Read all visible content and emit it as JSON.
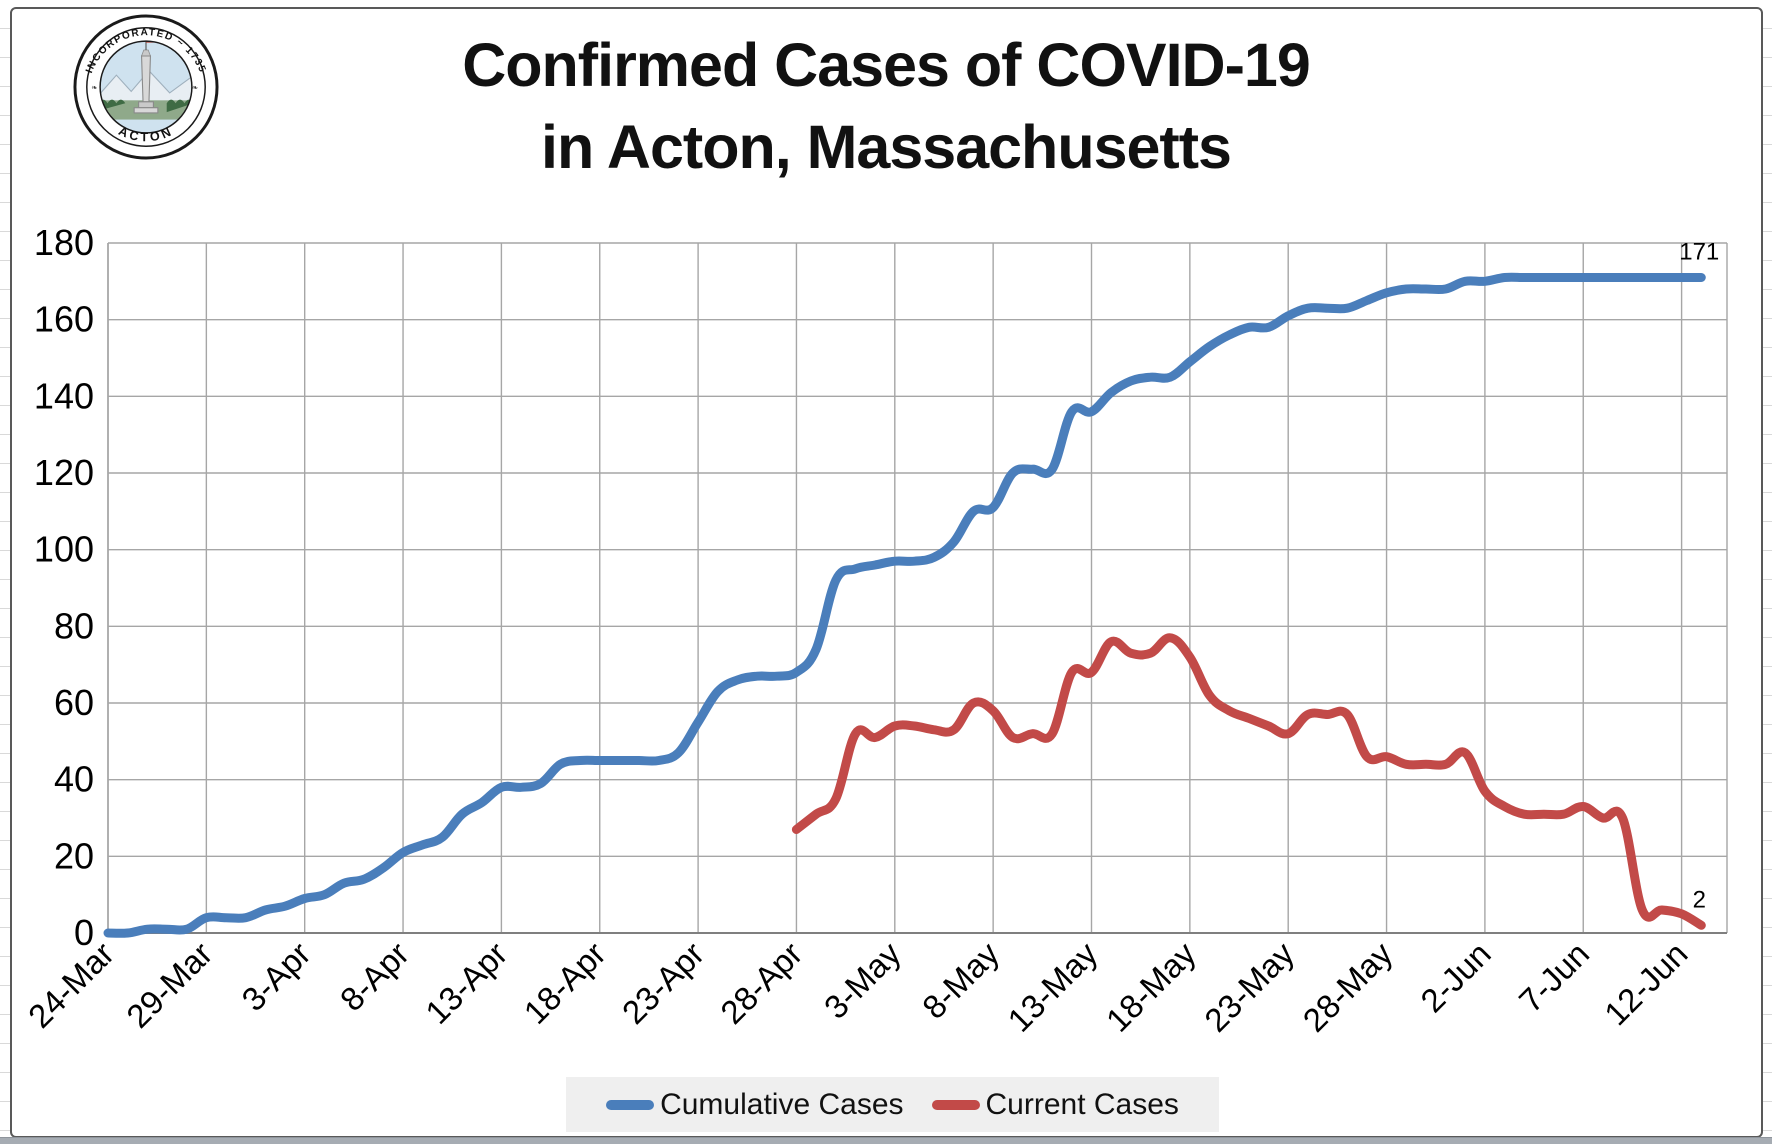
{
  "title": {
    "line1": "Confirmed Cases of COVID-19",
    "line2": "in Acton, Massachusetts"
  },
  "logo": {
    "top_text": "INCORPORATED ~ 1735",
    "bottom_text": "ACTON"
  },
  "colors": {
    "cumulative": "#4a7ebb",
    "current": "#c24a48",
    "gridline": "#a6a6a6",
    "axis": "#7f7f7f",
    "text": "#000000",
    "legend_bg": "#efefef"
  },
  "legend": {
    "items": [
      {
        "label": "Cumulative Cases",
        "color": "#4a7ebb"
      },
      {
        "label": "Current Cases",
        "color": "#c24a48"
      }
    ]
  },
  "chart_data": {
    "type": "line",
    "title": "Confirmed Cases of COVID-19 in Acton, Massachusetts",
    "grid": true,
    "legend_position": "bottom",
    "ylim": [
      0,
      180
    ],
    "y_ticks": [
      0,
      20,
      40,
      60,
      80,
      100,
      120,
      140,
      160,
      180
    ],
    "x_tick_labels": [
      "24-Mar",
      "29-Mar",
      "3-Apr",
      "8-Apr",
      "13-Apr",
      "18-Apr",
      "23-Apr",
      "28-Apr",
      "3-May",
      "8-May",
      "13-May",
      "18-May",
      "23-May",
      "28-May",
      "2-Jun",
      "7-Jun",
      "12-Jun"
    ],
    "x_tick_interval_days": 5,
    "start_date": "24-Mar",
    "end_date": "13-Jun",
    "series": [
      {
        "name": "Cumulative Cases",
        "color": "#4a7ebb",
        "start_offset_days": 0,
        "end_label": "171",
        "values": [
          0,
          0,
          1,
          1,
          1,
          4,
          4,
          4,
          6,
          7,
          9,
          10,
          13,
          14,
          17,
          21,
          23,
          25,
          31,
          34,
          38,
          38,
          39,
          44,
          45,
          45,
          45,
          45,
          45,
          47,
          55,
          63,
          66,
          67,
          67,
          68,
          74,
          92,
          95,
          96,
          97,
          97,
          98,
          102,
          110,
          111,
          120,
          121,
          121,
          136,
          136,
          141,
          144,
          145,
          145,
          149,
          153,
          156,
          158,
          158,
          161,
          163,
          163,
          163,
          165,
          167,
          168,
          168,
          168,
          170,
          170,
          171,
          171,
          171,
          171,
          171,
          171,
          171,
          171,
          171,
          171,
          171
        ]
      },
      {
        "name": "Current Cases",
        "color": "#c24a48",
        "start_offset_days": 35,
        "end_label": "2",
        "values": [
          27,
          31,
          35,
          52,
          51,
          54,
          54,
          53,
          53,
          60,
          58,
          51,
          52,
          52,
          68,
          68,
          76,
          73,
          73,
          77,
          72,
          62,
          58,
          56,
          54,
          52,
          57,
          57,
          57,
          46,
          46,
          44,
          44,
          44,
          47,
          37,
          33,
          31,
          31,
          31,
          33,
          30,
          30,
          6,
          6,
          5,
          2
        ]
      }
    ]
  }
}
